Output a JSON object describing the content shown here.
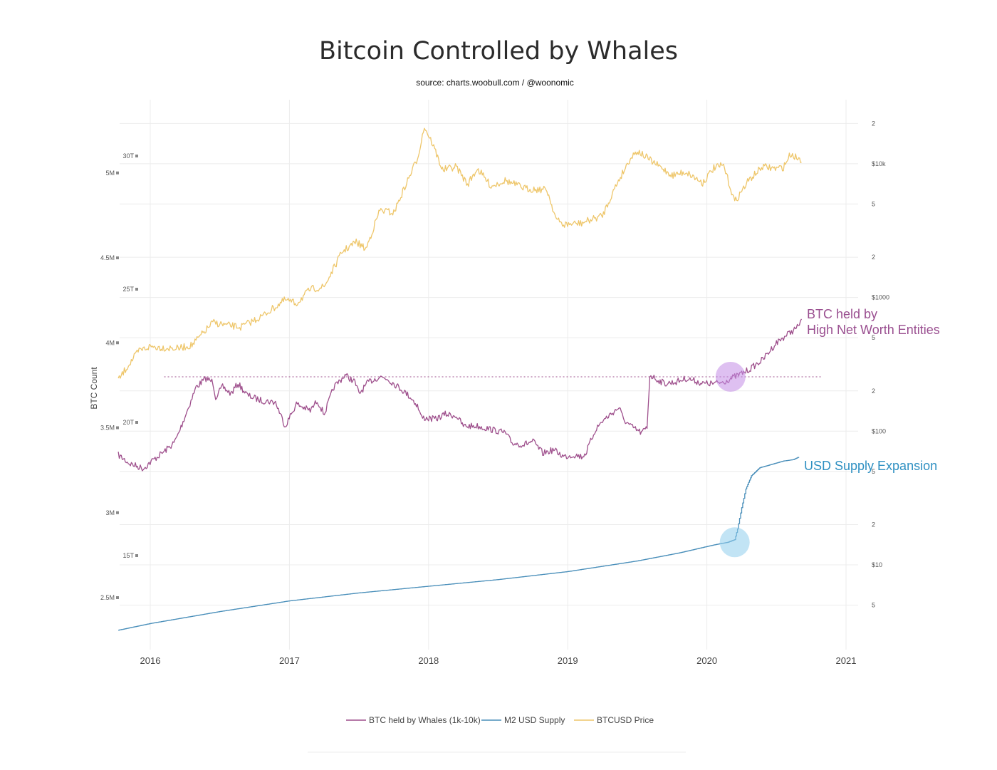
{
  "title": "Bitcoin Controlled by Whales",
  "subtitle": "source: charts.woobull.com / @woonomic",
  "colors": {
    "whales": "#9e4f8c",
    "m2": "#4a8fba",
    "price": "#eec66a",
    "grid": "#ececec",
    "purple_circle": "#c28ce6",
    "blue_circle": "#8fcdec",
    "ann_whales": "#9a4f90",
    "ann_m2": "#2f90c2"
  },
  "chart_data": {
    "type": "line",
    "title": "Bitcoin Controlled by Whales",
    "subtitle": "source: charts.woobull.com / @woonomic",
    "x_ticks": [
      "2016",
      "2017",
      "2018",
      "2019",
      "2020",
      "2021"
    ],
    "x_range": [
      2015.77,
      2021.1
    ],
    "y_left": {
      "label": "BTC Count",
      "ticks": [
        "2.5M",
        "3M",
        "3.5M",
        "4M",
        "4.5M",
        "5M"
      ],
      "values": [
        2.5,
        3.0,
        3.5,
        4.0,
        4.5,
        5.0
      ],
      "unit": "million BTC"
    },
    "y_left2": {
      "ticks": [
        "15T",
        "20T",
        "25T",
        "30T"
      ],
      "values": [
        15,
        20,
        25,
        30
      ],
      "unit": "trillion USD"
    },
    "y_right": {
      "scale": "log",
      "ticks": [
        "5",
        "$10",
        "2",
        "5",
        "$100",
        "2",
        "5",
        "$1000",
        "2",
        "5",
        "$10k",
        "2"
      ],
      "values": [
        5,
        10,
        20,
        50,
        100,
        200,
        500,
        1000,
        2000,
        5000,
        10000,
        20000
      ]
    },
    "series": [
      {
        "name": "BTC held by Whales (1k-10k)",
        "color": "#9e4f8c",
        "axis": "left",
        "unit": "million BTC",
        "points": [
          [
            2015.77,
            3.34
          ],
          [
            2015.85,
            3.29
          ],
          [
            2015.95,
            3.26
          ],
          [
            2016.02,
            3.31
          ],
          [
            2016.1,
            3.36
          ],
          [
            2016.17,
            3.41
          ],
          [
            2016.2,
            3.46
          ],
          [
            2016.27,
            3.61
          ],
          [
            2016.33,
            3.74
          ],
          [
            2016.4,
            3.79
          ],
          [
            2016.45,
            3.77
          ],
          [
            2016.47,
            3.68
          ],
          [
            2016.52,
            3.74
          ],
          [
            2016.58,
            3.7
          ],
          [
            2016.63,
            3.76
          ],
          [
            2016.7,
            3.69
          ],
          [
            2016.8,
            3.66
          ],
          [
            2016.9,
            3.65
          ],
          [
            2016.97,
            3.51
          ],
          [
            2017.05,
            3.64
          ],
          [
            2017.15,
            3.6
          ],
          [
            2017.2,
            3.66
          ],
          [
            2017.25,
            3.58
          ],
          [
            2017.32,
            3.74
          ],
          [
            2017.4,
            3.81
          ],
          [
            2017.47,
            3.77
          ],
          [
            2017.5,
            3.7
          ],
          [
            2017.57,
            3.77
          ],
          [
            2017.65,
            3.8
          ],
          [
            2017.7,
            3.79
          ],
          [
            2017.75,
            3.76
          ],
          [
            2017.8,
            3.73
          ],
          [
            2017.87,
            3.68
          ],
          [
            2017.92,
            3.63
          ],
          [
            2017.95,
            3.56
          ],
          [
            2018.05,
            3.55
          ],
          [
            2018.12,
            3.58
          ],
          [
            2018.2,
            3.57
          ],
          [
            2018.25,
            3.51
          ],
          [
            2018.35,
            3.51
          ],
          [
            2018.45,
            3.49
          ],
          [
            2018.55,
            3.47
          ],
          [
            2018.6,
            3.41
          ],
          [
            2018.68,
            3.4
          ],
          [
            2018.75,
            3.42
          ],
          [
            2018.82,
            3.35
          ],
          [
            2018.9,
            3.37
          ],
          [
            2018.97,
            3.33
          ],
          [
            2019.05,
            3.34
          ],
          [
            2019.1,
            3.33
          ],
          [
            2019.13,
            3.35
          ],
          [
            2019.2,
            3.49
          ],
          [
            2019.25,
            3.54
          ],
          [
            2019.37,
            3.62
          ],
          [
            2019.4,
            3.55
          ],
          [
            2019.45,
            3.51
          ],
          [
            2019.53,
            3.47
          ],
          [
            2019.57,
            3.5
          ],
          [
            2019.59,
            3.81
          ],
          [
            2019.65,
            3.78
          ],
          [
            2019.7,
            3.76
          ],
          [
            2019.78,
            3.77
          ],
          [
            2019.85,
            3.79
          ],
          [
            2019.9,
            3.78
          ],
          [
            2019.97,
            3.76
          ],
          [
            2020.05,
            3.76
          ],
          [
            2020.12,
            3.77
          ],
          [
            2020.2,
            3.8
          ],
          [
            2020.3,
            3.84
          ],
          [
            2020.4,
            3.9
          ],
          [
            2020.45,
            3.95
          ],
          [
            2020.5,
            4.0
          ],
          [
            2020.58,
            4.05
          ],
          [
            2020.65,
            4.09
          ],
          [
            2020.68,
            4.14
          ]
        ]
      },
      {
        "name": "M2 USD Supply",
        "color": "#4a8fba",
        "axis": "left2",
        "unit": "trillion USD",
        "points": [
          [
            2015.77,
            12.2
          ],
          [
            2016.0,
            12.45
          ],
          [
            2016.5,
            12.9
          ],
          [
            2017.0,
            13.3
          ],
          [
            2017.5,
            13.6
          ],
          [
            2018.0,
            13.85
          ],
          [
            2018.5,
            14.1
          ],
          [
            2019.0,
            14.4
          ],
          [
            2019.5,
            14.8
          ],
          [
            2019.8,
            15.1
          ],
          [
            2020.05,
            15.4
          ],
          [
            2020.15,
            15.5
          ],
          [
            2020.2,
            15.6
          ],
          [
            2020.22,
            16.0
          ],
          [
            2020.25,
            16.8
          ],
          [
            2020.28,
            17.5
          ],
          [
            2020.32,
            18.0
          ],
          [
            2020.38,
            18.3
          ],
          [
            2020.45,
            18.4
          ],
          [
            2020.55,
            18.55
          ],
          [
            2020.62,
            18.6
          ],
          [
            2020.66,
            18.7
          ]
        ]
      },
      {
        "name": "BTCUSD Price",
        "color": "#eec66a",
        "axis": "right",
        "unit": "USD",
        "points": [
          [
            2015.77,
            240
          ],
          [
            2015.85,
            320
          ],
          [
            2015.92,
            400
          ],
          [
            2016.0,
            430
          ],
          [
            2016.1,
            420
          ],
          [
            2016.2,
            415
          ],
          [
            2016.3,
            440
          ],
          [
            2016.45,
            650
          ],
          [
            2016.55,
            620
          ],
          [
            2016.65,
            600
          ],
          [
            2016.8,
            720
          ],
          [
            2016.97,
            960
          ],
          [
            2017.05,
            900
          ],
          [
            2017.15,
            1150
          ],
          [
            2017.25,
            1200
          ],
          [
            2017.38,
            2200
          ],
          [
            2017.48,
            2600
          ],
          [
            2017.55,
            2300
          ],
          [
            2017.65,
            4500
          ],
          [
            2017.75,
            4300
          ],
          [
            2017.85,
            7500
          ],
          [
            2017.92,
            11000
          ],
          [
            2017.97,
            19000
          ],
          [
            2018.03,
            14000
          ],
          [
            2018.1,
            9000
          ],
          [
            2018.2,
            9500
          ],
          [
            2018.28,
            7000
          ],
          [
            2018.35,
            9200
          ],
          [
            2018.45,
            6800
          ],
          [
            2018.55,
            7500
          ],
          [
            2018.7,
            6500
          ],
          [
            2018.85,
            6400
          ],
          [
            2018.92,
            3800
          ],
          [
            2018.97,
            3500
          ],
          [
            2019.1,
            3600
          ],
          [
            2019.25,
            4100
          ],
          [
            2019.35,
            7000
          ],
          [
            2019.45,
            11000
          ],
          [
            2019.5,
            12500
          ],
          [
            2019.6,
            10500
          ],
          [
            2019.75,
            8200
          ],
          [
            2019.85,
            8700
          ],
          [
            2019.97,
            7200
          ],
          [
            2020.05,
            9300
          ],
          [
            2020.12,
            9700
          ],
          [
            2020.2,
            5200
          ],
          [
            2020.3,
            7500
          ],
          [
            2020.4,
            9500
          ],
          [
            2020.5,
            9200
          ],
          [
            2020.55,
            9400
          ],
          [
            2020.6,
            11800
          ],
          [
            2020.66,
            11000
          ],
          [
            2020.68,
            10300
          ]
        ]
      }
    ],
    "reference_line": {
      "y": 3.8,
      "axis": "left",
      "style": "dotted",
      "x_range": [
        2016.1,
        2020.82
      ]
    },
    "highlights": [
      {
        "x": 2020.17,
        "y": 3.8,
        "axis": "left",
        "color": "purple"
      },
      {
        "x": 2020.2,
        "y": 15.5,
        "axis": "left2",
        "color": "blue"
      }
    ],
    "annotations": [
      "BTC held by",
      "High Net Worth Entities",
      "USD Supply Expansion"
    ],
    "legend": [
      "BTC held by Whales (1k-10k)",
      "M2 USD Supply",
      "BTCUSD Price"
    ],
    "legend_position": "bottom-center",
    "grid": true
  }
}
